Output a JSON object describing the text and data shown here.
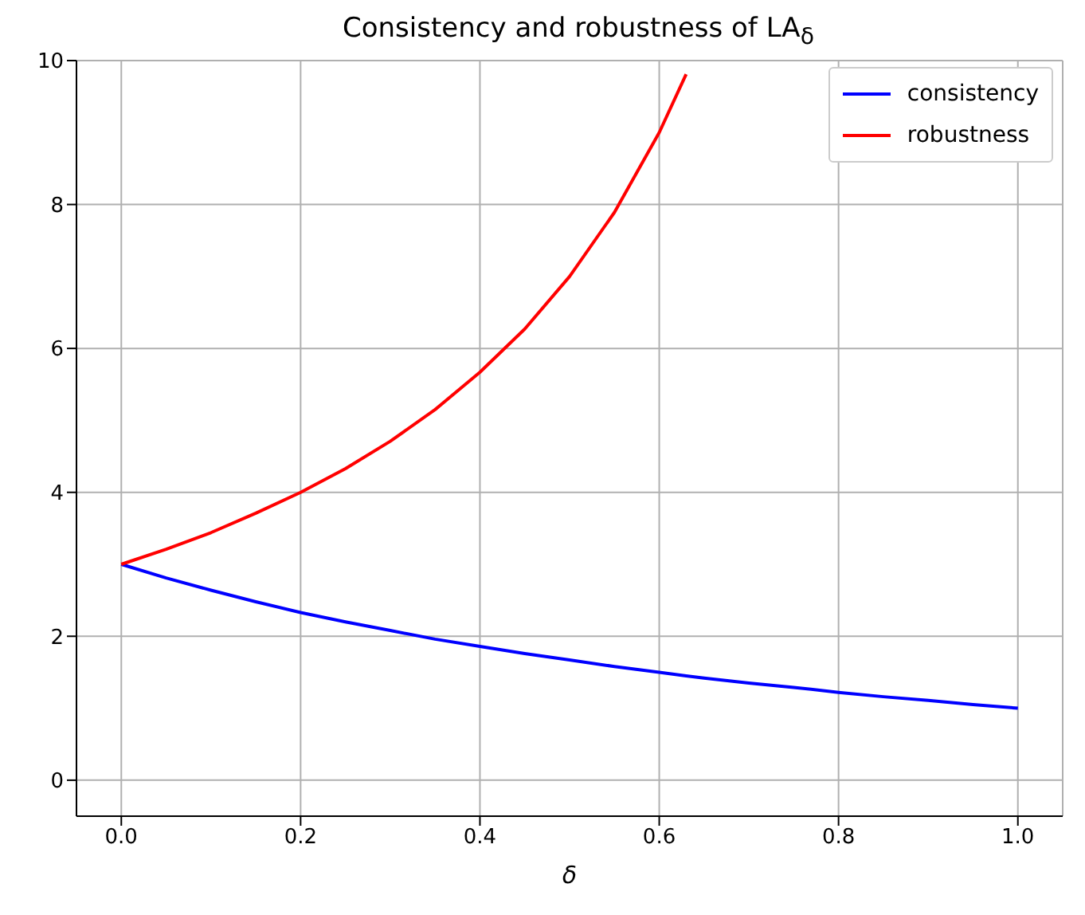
{
  "chart_data": {
    "type": "line",
    "title": "Consistency and robustness of LA$_{δ}$",
    "xlabel": "δ",
    "x": [
      0,
      0.05,
      0.1,
      0.15,
      0.2,
      0.25,
      0.3,
      0.35,
      0.4,
      0.45,
      0.5,
      0.55,
      0.6,
      0.63,
      0.65,
      0.7,
      0.75,
      0.8,
      0.85,
      0.9,
      0.95,
      1
    ],
    "series": [
      {
        "name": "consistency",
        "color": "#0000ff",
        "values": [
          3,
          2.81,
          2.64,
          2.48,
          2.33,
          2.2,
          2.08,
          1.96,
          1.86,
          1.76,
          1.67,
          1.58,
          1.5,
          1.45,
          1.42,
          1.35,
          1.29,
          1.22,
          1.16,
          1.11,
          1.05,
          1
        ]
      },
      {
        "name": "robustness",
        "color": "#ff0000",
        "values": [
          3,
          3.21,
          3.44,
          3.71,
          4,
          4.33,
          4.71,
          5.15,
          5.67,
          6.27,
          7,
          7.89,
          9,
          9.81,
          null,
          null,
          null,
          null,
          null,
          null,
          null,
          null
        ]
      }
    ],
    "xlim": [
      -0.05,
      1.05
    ],
    "xticks": [
      {
        "value": 0,
        "label": "0.0"
      },
      0.2,
      0.4,
      0.6,
      0.8,
      {
        "value": 1,
        "label": "1.0"
      }
    ],
    "ylim": [
      -0.5,
      10
    ],
    "yticks": [
      0,
      2,
      4,
      6,
      8,
      10
    ],
    "grid": true,
    "legend": "top right",
    "marker": "none",
    "line_style": "solid"
  }
}
